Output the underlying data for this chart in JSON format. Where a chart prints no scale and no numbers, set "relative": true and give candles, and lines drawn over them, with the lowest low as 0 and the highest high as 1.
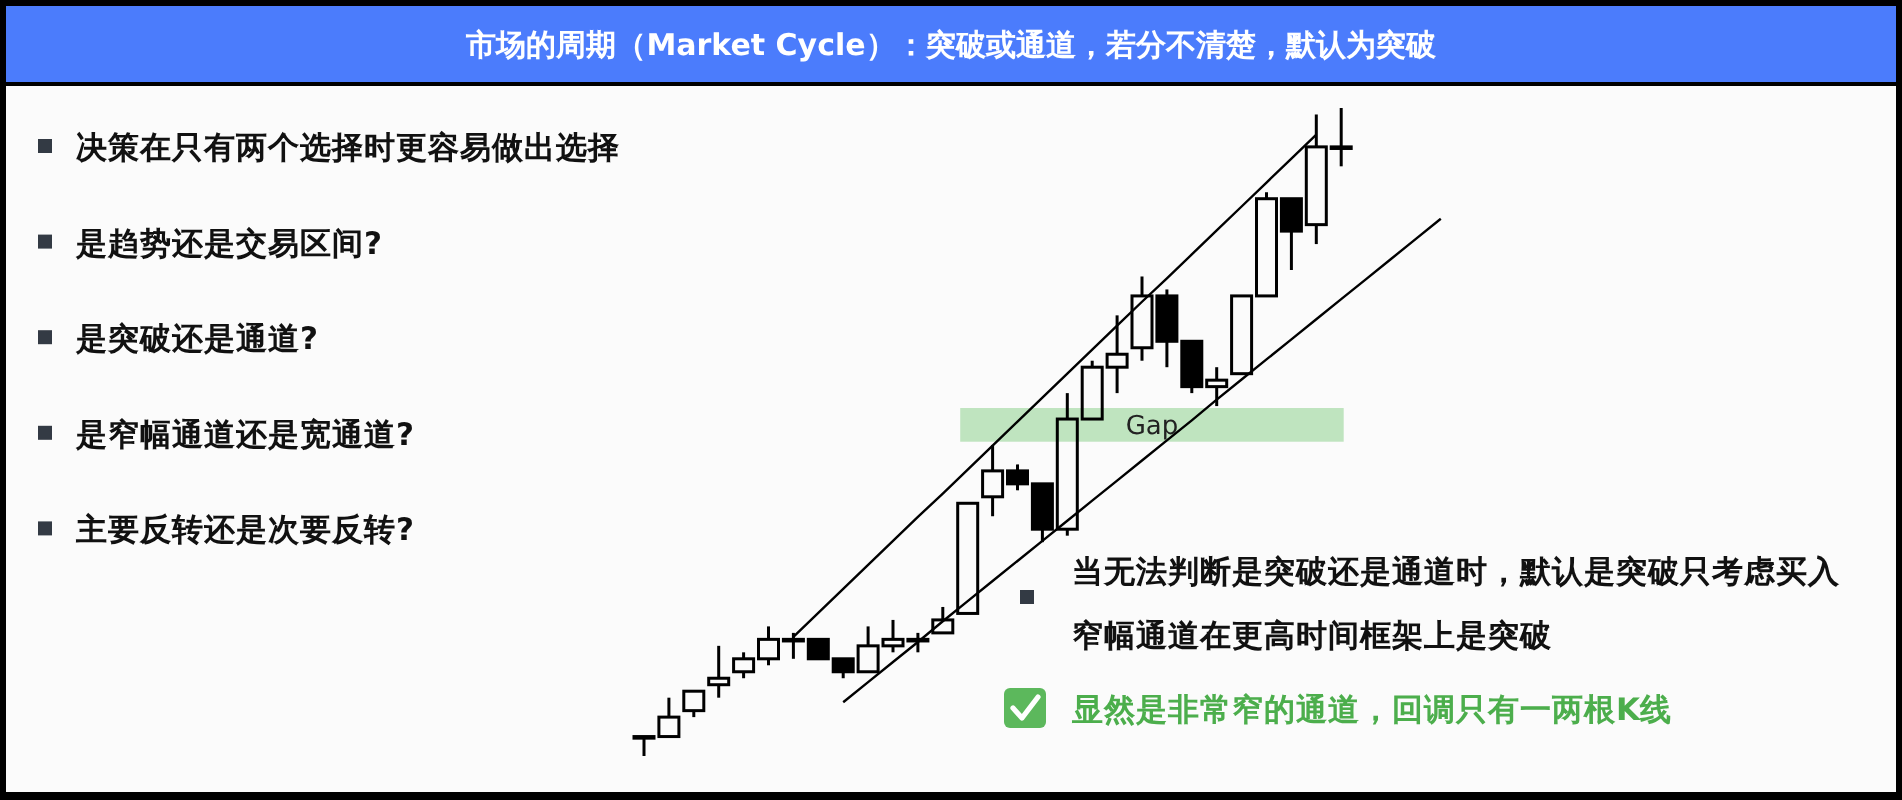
{
  "chart_data": {
    "type": "candlestick",
    "title": "市场的周期（Market Cycle）：突破或通道，若分不清楚，默认为突破",
    "categories": [
      null,
      null,
      null,
      null,
      null,
      null,
      null,
      null,
      null,
      null,
      null,
      null,
      null,
      null,
      null,
      null,
      null,
      null,
      null,
      null,
      null,
      null,
      null,
      null,
      null,
      null,
      null,
      null,
      null,
      null,
      null,
      null,
      null
    ],
    "relative": true,
    "color": "#000000",
    "ohlc": [
      [
        0.03,
        0.03,
        0,
        0.03
      ],
      [
        0.03,
        0.09,
        0.03,
        0.06
      ],
      [
        0.07,
        0.1,
        0.06,
        0.1
      ],
      [
        0.11,
        0.17,
        0.09,
        0.12
      ],
      [
        0.13,
        0.16,
        0.12,
        0.15
      ],
      [
        0.15,
        0.2,
        0.14,
        0.18
      ],
      [
        0.18,
        0.19,
        0.15,
        0.18
      ],
      [
        0.18,
        0.18,
        0.15,
        0.15
      ],
      [
        0.15,
        0.15,
        0.12,
        0.13
      ],
      [
        0.13,
        0.2,
        0.13,
        0.17
      ],
      [
        0.17,
        0.21,
        0.16,
        0.18
      ],
      [
        0.18,
        0.19,
        0.16,
        0.18
      ],
      [
        0.19,
        0.23,
        0.19,
        0.21
      ],
      [
        0.22,
        0.39,
        0.22,
        0.39
      ],
      [
        0.4,
        0.48,
        0.37,
        0.44
      ],
      [
        0.44,
        0.45,
        0.41,
        0.42
      ],
      [
        0.42,
        0.42,
        0.33,
        0.35
      ],
      [
        0.35,
        0.56,
        0.34,
        0.52
      ],
      [
        0.52,
        0.61,
        0.52,
        0.6
      ],
      [
        0.6,
        0.68,
        0.56,
        0.62
      ],
      [
        0.63,
        0.74,
        0.61,
        0.71
      ],
      [
        0.71,
        0.72,
        0.6,
        0.64
      ],
      [
        0.64,
        0.64,
        0.56,
        0.57
      ],
      [
        0.57,
        0.6,
        0.54,
        0.58
      ],
      [
        0.59,
        0.71,
        0.59,
        0.71
      ],
      [
        0.71,
        0.87,
        0.71,
        0.86
      ],
      [
        0.86,
        0.86,
        0.75,
        0.81
      ],
      [
        0.82,
        0.99,
        0.79,
        0.94
      ],
      [
        0.94,
        1,
        0.91,
        0.94
      ],
      null,
      null,
      null,
      null
    ],
    "series": [
      {
        "type": "line",
        "color": "#000000",
        "values": [
          null,
          null,
          null,
          null,
          null,
          null,
          0.184,
          0.221,
          0.258,
          0.295,
          0.332,
          0.369,
          0.405,
          0.442,
          0.479,
          0.516,
          0.553,
          0.59,
          0.627,
          0.664,
          0.701,
          0.737,
          0.774,
          0.811,
          0.848,
          0.885,
          0.922,
          0.959,
          null,
          null,
          null,
          null,
          null
        ]
      },
      {
        "type": "line",
        "color": "#000000",
        "values": [
          null,
          null,
          null,
          null,
          null,
          null,
          null,
          null,
          0.083,
          0.114,
          0.145,
          0.176,
          0.208,
          0.239,
          0.27,
          0.301,
          0.332,
          0.363,
          0.394,
          0.425,
          0.456,
          0.487,
          0.518,
          0.55,
          0.581,
          0.612,
          0.643,
          0.674,
          0.705,
          0.736,
          0.767,
          0.798,
          0.829
        ]
      }
    ],
    "bands": [
      {
        "axis": "y",
        "from": 0.485,
        "to": 0.537,
        "label": "Gap",
        "color": "#bfe4bf"
      }
    ],
    "annotations": [
      "决策在只有两个选择时更容易做出选择",
      "是趋势还是交易区间?",
      "是突破还是通道?",
      "是窄幅通道还是宽通道?",
      "主要反转还是次要反转?",
      "当无法判断是突破还是通道时，默认是突破只考虑买入",
      "窄幅通道在更高时间框架上是突破",
      "显然是非常窄的通道，回调只有一两根K线"
    ]
  }
}
